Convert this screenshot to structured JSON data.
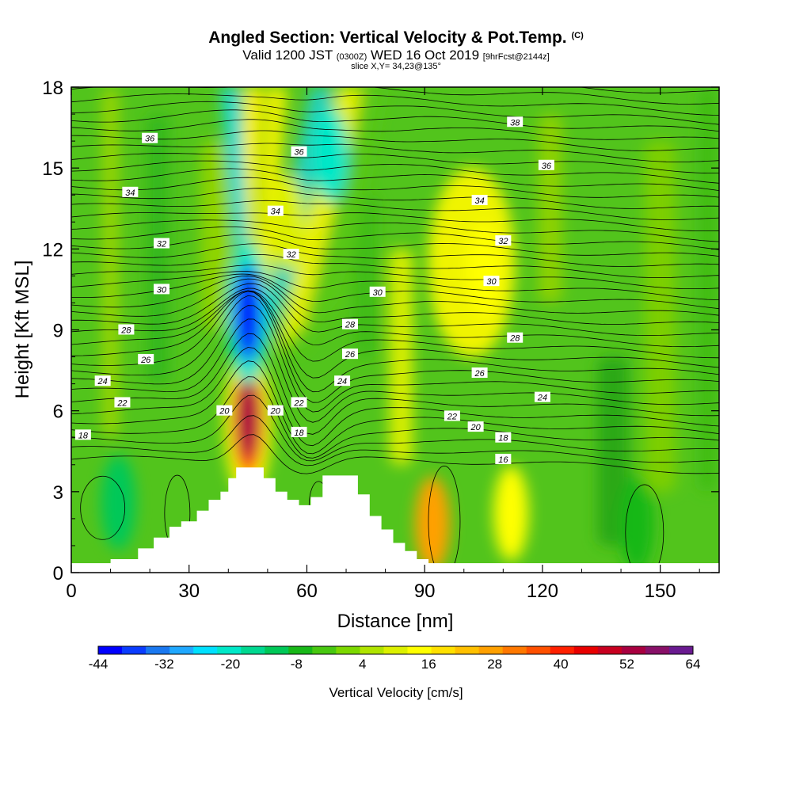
{
  "header": {
    "title": "Angled Section: Vertical Velocity & Pot.Temp.",
    "title_unit": "(C)",
    "valid_prefix": "Valid 1200 JST",
    "valid_zulu": "(0300Z)",
    "valid_date": "WED 16 Oct 2019",
    "forecast": "[9hrFcst@2144z]",
    "slice": "slice X,Y= 34,23@135°"
  },
  "chart_data": {
    "type": "heatmap",
    "xlabel": "Distance [nm]",
    "ylabel": "Height [Kft MSL]",
    "xlim": [
      0,
      165
    ],
    "ylim": [
      0,
      18
    ],
    "xticks": [
      0,
      30,
      60,
      90,
      120,
      150
    ],
    "yticks": [
      0,
      3,
      6,
      9,
      12,
      15,
      18
    ],
    "colorbar": {
      "label": "Vertical Velocity [cm/s]",
      "ticks": [
        -44,
        -32,
        -20,
        -8,
        4,
        16,
        28,
        40,
        52,
        64
      ],
      "colors": [
        "#0000ff",
        "#0a3cff",
        "#1a78f0",
        "#20a8ff",
        "#00e0ff",
        "#00e8c8",
        "#00d890",
        "#00c858",
        "#18b818",
        "#48c810",
        "#7cd800",
        "#b0e400",
        "#dcf000",
        "#ffff00",
        "#ffe000",
        "#ffc000",
        "#ffa000",
        "#ff7800",
        "#ff5000",
        "#ff2000",
        "#e80000",
        "#c80020",
        "#a80040",
        "#881068",
        "#6a1a90"
      ]
    },
    "velocity_features": [
      {
        "x": 45,
        "z": 5.8,
        "value": 52
      },
      {
        "x": 45,
        "z": 9.6,
        "value": -44
      },
      {
        "x": 66,
        "z": 15.5,
        "value": -20
      },
      {
        "x": 55,
        "z": 13.0,
        "value": 10
      },
      {
        "x": 92,
        "z": 1.8,
        "value": 28
      },
      {
        "x": 112,
        "z": 2.2,
        "value": 16
      },
      {
        "x": 105,
        "z": 11.2,
        "value": 14
      },
      {
        "x": 144,
        "z": 1.8,
        "value": -8
      },
      {
        "x": 12,
        "z": 2.6,
        "value": -10
      }
    ],
    "theta_contour_labels": [
      {
        "text": "38",
        "x": 113,
        "z": 16.7
      },
      {
        "text": "36",
        "x": 20,
        "z": 16.1
      },
      {
        "text": "36",
        "x": 58,
        "z": 15.6
      },
      {
        "text": "36",
        "x": 121,
        "z": 15.1
      },
      {
        "text": "34",
        "x": 15,
        "z": 14.1
      },
      {
        "text": "34",
        "x": 52,
        "z": 13.4
      },
      {
        "text": "34",
        "x": 104,
        "z": 13.8
      },
      {
        "text": "32",
        "x": 23,
        "z": 12.2
      },
      {
        "text": "32",
        "x": 56,
        "z": 11.8
      },
      {
        "text": "32",
        "x": 110,
        "z": 12.3
      },
      {
        "text": "30",
        "x": 23,
        "z": 10.5
      },
      {
        "text": "30",
        "x": 78,
        "z": 10.4
      },
      {
        "text": "30",
        "x": 107,
        "z": 10.8
      },
      {
        "text": "28",
        "x": 14,
        "z": 9.0
      },
      {
        "text": "28",
        "x": 71,
        "z": 9.2
      },
      {
        "text": "28",
        "x": 113,
        "z": 8.7
      },
      {
        "text": "26",
        "x": 19,
        "z": 7.9
      },
      {
        "text": "26",
        "x": 71,
        "z": 8.1
      },
      {
        "text": "26",
        "x": 104,
        "z": 7.4
      },
      {
        "text": "24",
        "x": 8,
        "z": 7.1
      },
      {
        "text": "24",
        "x": 69,
        "z": 7.1
      },
      {
        "text": "24",
        "x": 120,
        "z": 6.5
      },
      {
        "text": "22",
        "x": 13,
        "z": 6.3
      },
      {
        "text": "22",
        "x": 58,
        "z": 6.3
      },
      {
        "text": "22",
        "x": 97,
        "z": 5.8
      },
      {
        "text": "20",
        "x": 39,
        "z": 6.0
      },
      {
        "text": "20",
        "x": 52,
        "z": 6.0
      },
      {
        "text": "20",
        "x": 103,
        "z": 5.4
      },
      {
        "text": "18",
        "x": 3,
        "z": 5.1
      },
      {
        "text": "18",
        "x": 58,
        "z": 5.2
      },
      {
        "text": "18",
        "x": 110,
        "z": 5.0
      },
      {
        "text": "16",
        "x": 110,
        "z": 4.2
      }
    ],
    "terrain": [
      [
        10,
        0.5
      ],
      [
        13,
        0.5
      ],
      [
        17,
        0.9
      ],
      [
        21,
        1.3
      ],
      [
        25,
        1.7
      ],
      [
        28,
        1.9
      ],
      [
        32,
        2.3
      ],
      [
        35,
        2.7
      ],
      [
        38,
        3.0
      ],
      [
        40,
        3.5
      ],
      [
        42,
        3.9
      ],
      [
        46,
        3.9
      ],
      [
        49,
        3.5
      ],
      [
        52,
        3.0
      ],
      [
        55,
        2.7
      ],
      [
        58,
        2.5
      ],
      [
        61,
        2.8
      ],
      [
        64,
        3.6
      ],
      [
        70,
        3.6
      ],
      [
        73,
        2.9
      ],
      [
        76,
        2.1
      ],
      [
        79,
        1.6
      ],
      [
        82,
        1.1
      ],
      [
        85,
        0.8
      ],
      [
        88,
        0.5
      ],
      [
        91,
        0.3
      ]
    ]
  }
}
